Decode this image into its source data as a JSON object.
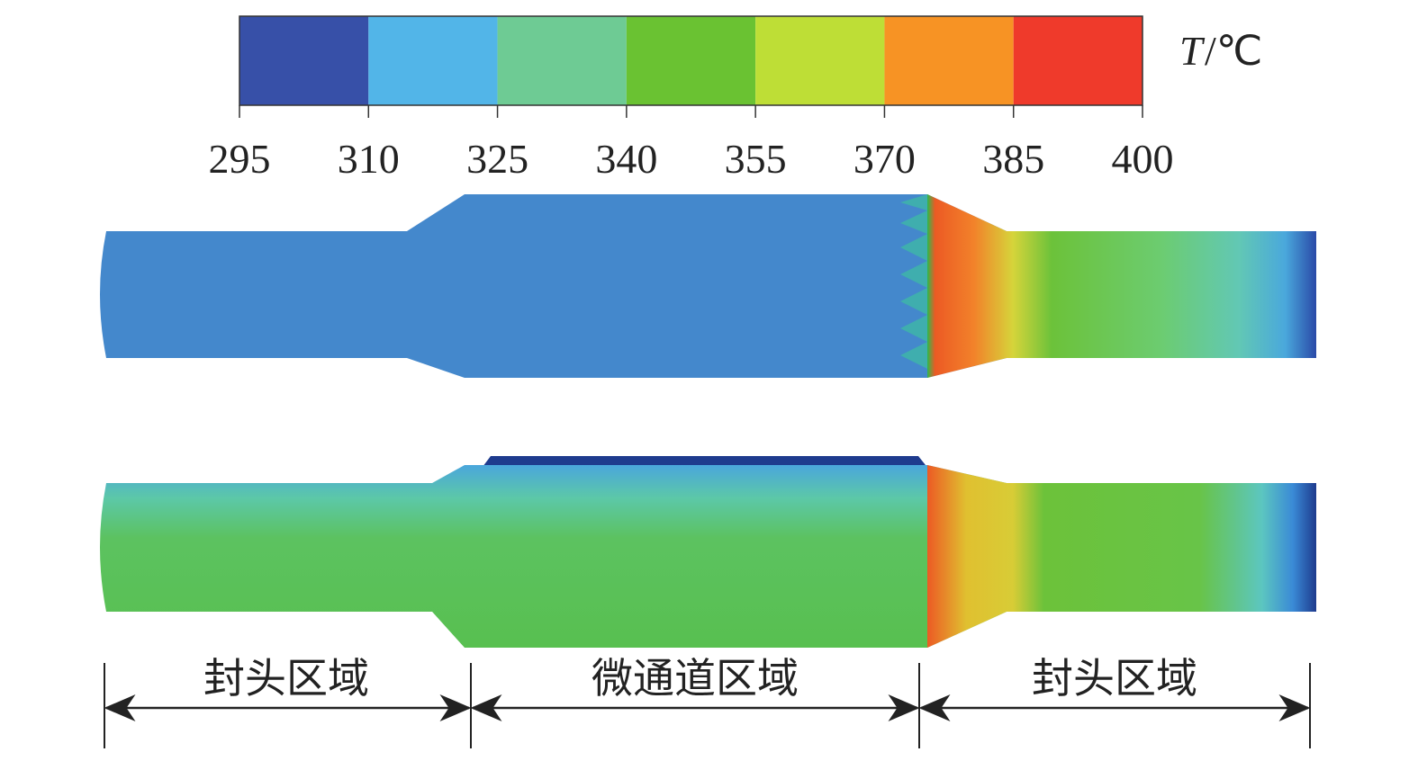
{
  "colorbar": {
    "symbol": "T",
    "unit": "/℃",
    "ticks": [
      295,
      310,
      325,
      340,
      355,
      370,
      385,
      400
    ],
    "colors": [
      "#3750a8",
      "#52b5e8",
      "#6ecb94",
      "#6ac232",
      "#bede36",
      "#f79324",
      "#ef3a2b"
    ]
  },
  "regions": [
    "封头区域",
    "微通道区域",
    "封头区域"
  ]
}
